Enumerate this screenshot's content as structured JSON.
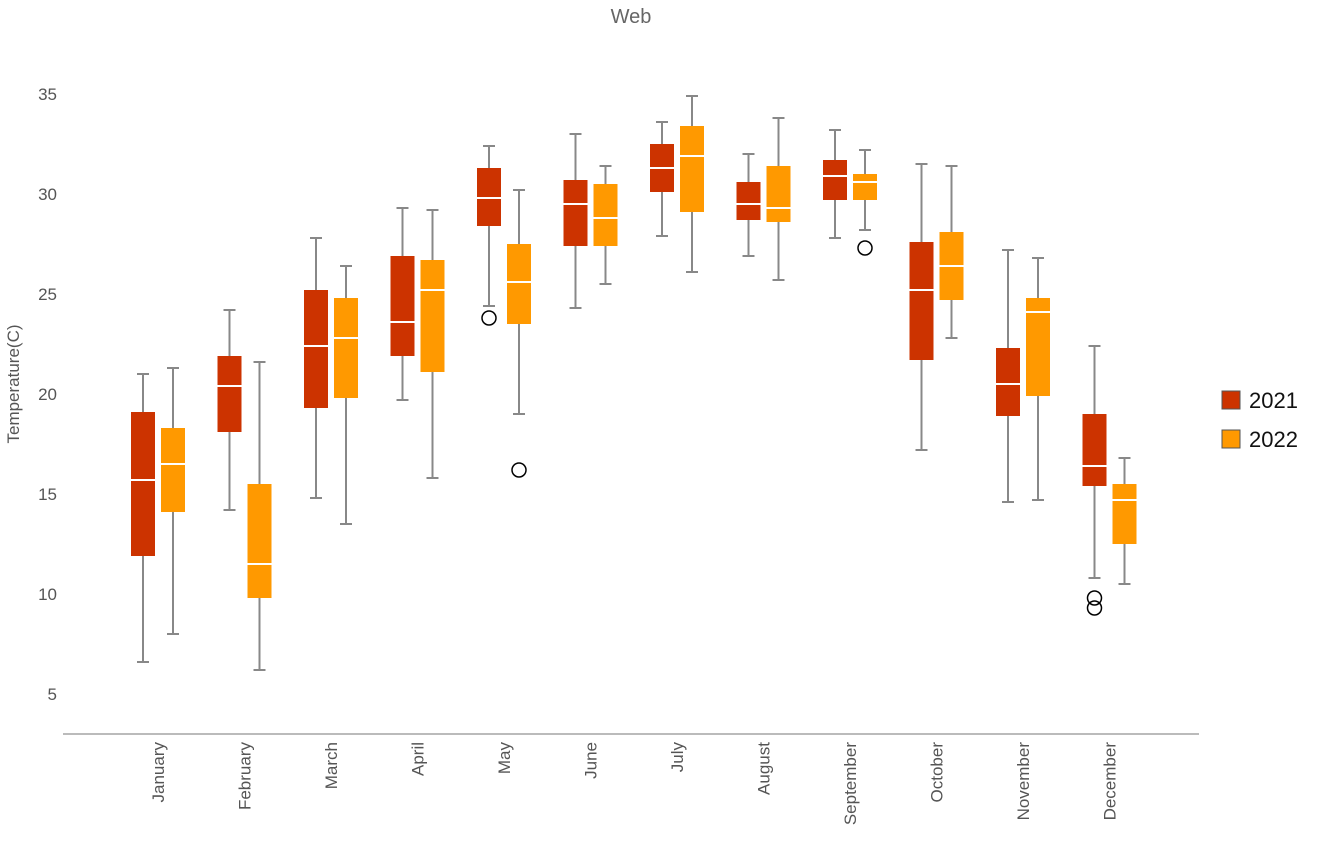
{
  "chart_data": {
    "type": "boxplot",
    "title": "Web",
    "xlabel": "",
    "ylabel": "Temperature(C)",
    "ylim": [
      3,
      37
    ],
    "yticks": [
      5,
      10,
      15,
      20,
      25,
      30,
      35
    ],
    "grid": false,
    "legend_position": "right",
    "categories": [
      "January",
      "February",
      "March",
      "April",
      "May",
      "June",
      "July",
      "August",
      "September",
      "October",
      "November",
      "December"
    ],
    "series": [
      {
        "name": "2021",
        "color": "#CC3300",
        "boxes": [
          {
            "min": 6.6,
            "q1": 11.9,
            "median": 15.7,
            "q3": 19.1,
            "max": 21.0,
            "outliers": []
          },
          {
            "min": 14.2,
            "q1": 18.1,
            "median": 20.4,
            "q3": 21.9,
            "max": 24.2,
            "outliers": []
          },
          {
            "min": 14.8,
            "q1": 19.3,
            "median": 22.4,
            "q3": 25.2,
            "max": 27.8,
            "outliers": []
          },
          {
            "min": 19.7,
            "q1": 21.9,
            "median": 23.6,
            "q3": 26.9,
            "max": 29.3,
            "outliers": []
          },
          {
            "min": 24.4,
            "q1": 28.4,
            "median": 29.8,
            "q3": 31.3,
            "max": 32.4,
            "outliers": [
              23.8
            ]
          },
          {
            "min": 24.3,
            "q1": 27.4,
            "median": 29.5,
            "q3": 30.7,
            "max": 33.0,
            "outliers": []
          },
          {
            "min": 27.9,
            "q1": 30.1,
            "median": 31.3,
            "q3": 32.5,
            "max": 33.6,
            "outliers": []
          },
          {
            "min": 26.9,
            "q1": 28.7,
            "median": 29.5,
            "q3": 30.6,
            "max": 32.0,
            "outliers": []
          },
          {
            "min": 27.8,
            "q1": 29.7,
            "median": 30.9,
            "q3": 31.7,
            "max": 33.2,
            "outliers": []
          },
          {
            "min": 17.2,
            "q1": 21.7,
            "median": 25.2,
            "q3": 27.6,
            "max": 31.5,
            "outliers": []
          },
          {
            "min": 14.6,
            "q1": 18.9,
            "median": 20.5,
            "q3": 22.3,
            "max": 27.2,
            "outliers": []
          },
          {
            "min": 10.8,
            "q1": 15.4,
            "median": 16.4,
            "q3": 19.0,
            "max": 22.4,
            "outliers": [
              9.8,
              9.3
            ]
          }
        ]
      },
      {
        "name": "2022",
        "color": "#FF9900",
        "boxes": [
          {
            "min": 8.0,
            "q1": 14.1,
            "median": 16.5,
            "q3": 18.3,
            "max": 21.3,
            "outliers": []
          },
          {
            "min": 6.2,
            "q1": 9.8,
            "median": 11.5,
            "q3": 15.5,
            "max": 21.6,
            "outliers": []
          },
          {
            "min": 13.5,
            "q1": 19.8,
            "median": 22.8,
            "q3": 24.8,
            "max": 26.4,
            "outliers": []
          },
          {
            "min": 15.8,
            "q1": 21.1,
            "median": 25.2,
            "q3": 26.7,
            "max": 29.2,
            "outliers": []
          },
          {
            "min": 19.0,
            "q1": 23.5,
            "median": 25.6,
            "q3": 27.5,
            "max": 30.2,
            "outliers": [
              16.2
            ]
          },
          {
            "min": 25.5,
            "q1": 27.4,
            "median": 28.8,
            "q3": 30.5,
            "max": 31.4,
            "outliers": []
          },
          {
            "min": 26.1,
            "q1": 29.1,
            "median": 31.9,
            "q3": 33.4,
            "max": 34.9,
            "outliers": []
          },
          {
            "min": 25.7,
            "q1": 28.6,
            "median": 29.3,
            "q3": 31.4,
            "max": 33.8,
            "outliers": []
          },
          {
            "min": 28.2,
            "q1": 29.7,
            "median": 30.6,
            "q3": 31.0,
            "max": 32.2,
            "outliers": [
              27.3
            ]
          },
          {
            "min": 22.8,
            "q1": 24.7,
            "median": 26.4,
            "q3": 28.1,
            "max": 31.4,
            "outliers": []
          },
          {
            "min": 14.7,
            "q1": 19.9,
            "median": 24.1,
            "q3": 24.8,
            "max": 26.8,
            "outliers": []
          },
          {
            "min": 10.5,
            "q1": 12.5,
            "median": 14.7,
            "q3": 15.5,
            "max": 16.8,
            "outliers": []
          }
        ]
      }
    ]
  }
}
